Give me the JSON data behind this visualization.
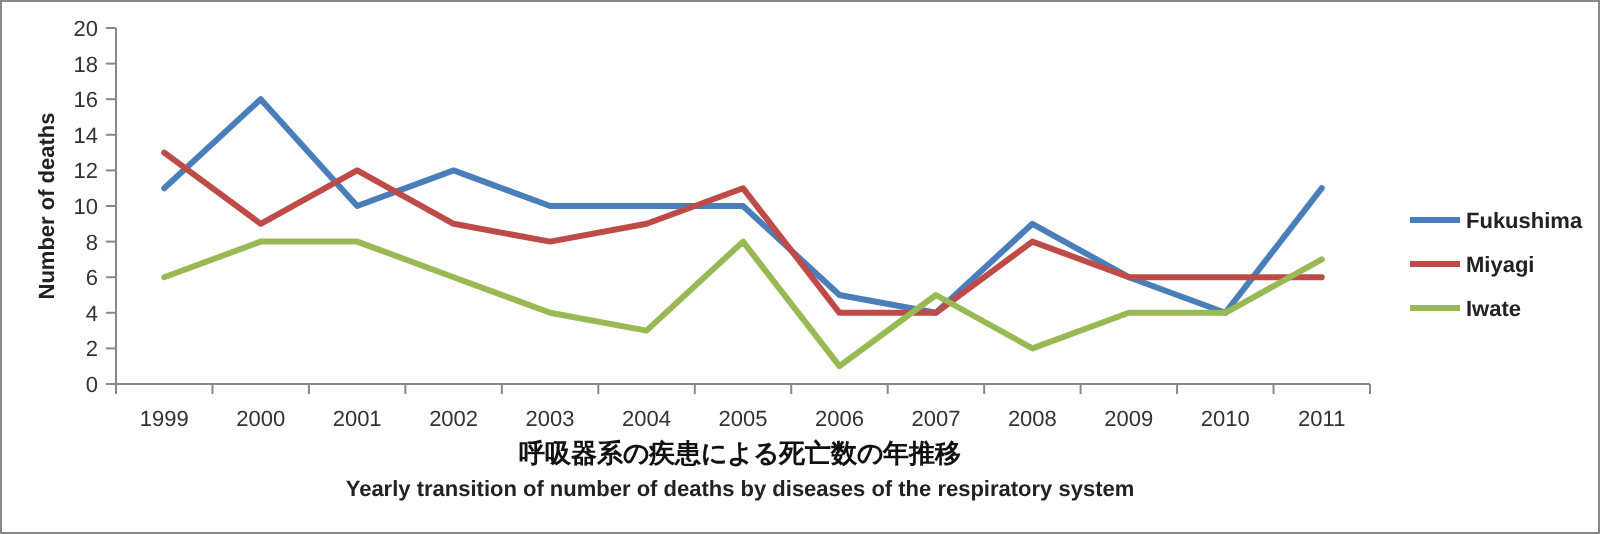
{
  "chart_data": {
    "type": "line",
    "xlabel": "呼吸器系の疾患による死亡数の年推移",
    "ylabel": "Number of deaths",
    "annotations": [
      "Yearly transition of number of deaths by diseases of the respiratory system"
    ],
    "categories": [
      "1999",
      "2000",
      "2001",
      "2002",
      "2003",
      "2004",
      "2005",
      "2006",
      "2007",
      "2008",
      "2009",
      "2010",
      "2011"
    ],
    "series": [
      {
        "name": "Fukushima",
        "color": "#4a7ebb",
        "values": [
          11,
          16,
          10,
          12,
          10,
          10,
          10,
          5,
          4,
          9,
          6,
          4,
          11
        ]
      },
      {
        "name": "Miyagi",
        "color": "#be4b48",
        "values": [
          13,
          9,
          12,
          9,
          8,
          9,
          11,
          4,
          4,
          8,
          6,
          6,
          6
        ]
      },
      {
        "name": "Iwate",
        "color": "#98b954",
        "values": [
          6,
          8,
          8,
          6,
          4,
          3,
          8,
          1,
          5,
          2,
          4,
          4,
          7
        ]
      }
    ],
    "ylim": [
      0,
      20
    ],
    "yticks": [
      0,
      2,
      4,
      6,
      8,
      10,
      12,
      14,
      16,
      18,
      20
    ],
    "grid": false,
    "legend": "right",
    "marker": "none",
    "line_style": "solid"
  }
}
